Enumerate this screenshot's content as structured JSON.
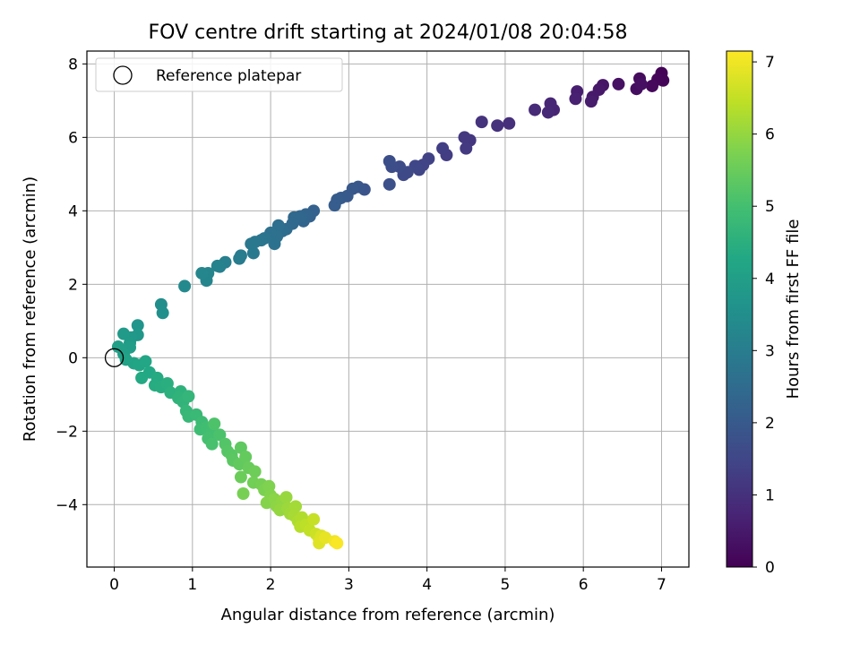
{
  "chart_data": {
    "type": "scatter",
    "title": "FOV centre drift starting at 2024/01/08 20:04:58",
    "xlabel": "Angular distance from reference (arcmin)",
    "ylabel": "Rotation from reference (arcmin)",
    "xlim": [
      -0.35,
      7.35
    ],
    "ylim": [
      -5.7,
      8.35
    ],
    "x_ticks": [
      0,
      1,
      2,
      3,
      4,
      5,
      6,
      7
    ],
    "y_ticks": [
      -4,
      -2,
      0,
      2,
      4,
      6,
      8
    ],
    "grid": true,
    "legend": {
      "placement": "top-left",
      "entries": [
        "Reference platepar"
      ]
    },
    "reference_point": {
      "name": "Reference platepar",
      "x": 0,
      "y": 0
    },
    "colorbar": {
      "label": "Hours from first FF file",
      "min": 0,
      "max": 7.15,
      "ticks": [
        0,
        1,
        2,
        3,
        4,
        5,
        6,
        7
      ],
      "colormap": "viridis"
    },
    "colormap_stops": [
      "#440154",
      "#482475",
      "#414487",
      "#355f8d",
      "#2a788e",
      "#21918c",
      "#22a884",
      "#44bf70",
      "#7ad151",
      "#bddf26",
      "#fde725"
    ],
    "points": [
      {
        "x": 7.0,
        "y": 7.75,
        "h": 0.05
      },
      {
        "x": 7.02,
        "y": 7.55,
        "h": 0.08
      },
      {
        "x": 6.95,
        "y": 7.58,
        "h": 0.1
      },
      {
        "x": 6.88,
        "y": 7.4,
        "h": 0.15
      },
      {
        "x": 6.72,
        "y": 7.6,
        "h": 0.2
      },
      {
        "x": 6.68,
        "y": 7.32,
        "h": 0.25
      },
      {
        "x": 6.74,
        "y": 7.45,
        "h": 0.28
      },
      {
        "x": 6.45,
        "y": 7.45,
        "h": 0.33
      },
      {
        "x": 6.25,
        "y": 7.42,
        "h": 0.4
      },
      {
        "x": 6.2,
        "y": 7.3,
        "h": 0.45
      },
      {
        "x": 6.12,
        "y": 7.1,
        "h": 0.5
      },
      {
        "x": 6.1,
        "y": 6.98,
        "h": 0.55
      },
      {
        "x": 5.92,
        "y": 7.25,
        "h": 0.6
      },
      {
        "x": 5.9,
        "y": 7.05,
        "h": 0.65
      },
      {
        "x": 5.62,
        "y": 6.75,
        "h": 0.72
      },
      {
        "x": 5.58,
        "y": 6.92,
        "h": 0.76
      },
      {
        "x": 5.55,
        "y": 6.68,
        "h": 0.8
      },
      {
        "x": 5.38,
        "y": 6.75,
        "h": 0.85
      },
      {
        "x": 5.05,
        "y": 6.38,
        "h": 0.95
      },
      {
        "x": 4.9,
        "y": 6.32,
        "h": 1.0
      },
      {
        "x": 4.7,
        "y": 6.42,
        "h": 1.05
      },
      {
        "x": 4.55,
        "y": 5.92,
        "h": 1.12
      },
      {
        "x": 4.48,
        "y": 6.0,
        "h": 1.16
      },
      {
        "x": 4.5,
        "y": 5.7,
        "h": 1.2
      },
      {
        "x": 4.25,
        "y": 5.52,
        "h": 1.27
      },
      {
        "x": 4.2,
        "y": 5.7,
        "h": 1.3
      },
      {
        "x": 4.02,
        "y": 5.42,
        "h": 1.38
      },
      {
        "x": 3.95,
        "y": 5.25,
        "h": 1.42
      },
      {
        "x": 3.9,
        "y": 5.12,
        "h": 1.46
      },
      {
        "x": 3.85,
        "y": 5.22,
        "h": 1.5
      },
      {
        "x": 3.75,
        "y": 5.05,
        "h": 1.55
      },
      {
        "x": 3.7,
        "y": 4.98,
        "h": 1.58
      },
      {
        "x": 3.65,
        "y": 5.2,
        "h": 1.62
      },
      {
        "x": 3.55,
        "y": 5.2,
        "h": 1.66
      },
      {
        "x": 3.52,
        "y": 5.35,
        "h": 1.7
      },
      {
        "x": 3.52,
        "y": 4.72,
        "h": 1.74
      },
      {
        "x": 3.2,
        "y": 4.58,
        "h": 1.85
      },
      {
        "x": 3.12,
        "y": 4.65,
        "h": 1.9
      },
      {
        "x": 3.05,
        "y": 4.6,
        "h": 1.94
      },
      {
        "x": 2.98,
        "y": 4.4,
        "h": 1.98
      },
      {
        "x": 2.9,
        "y": 4.35,
        "h": 2.02
      },
      {
        "x": 2.85,
        "y": 4.3,
        "h": 2.06
      },
      {
        "x": 2.82,
        "y": 4.15,
        "h": 2.1
      },
      {
        "x": 2.55,
        "y": 4.0,
        "h": 2.2
      },
      {
        "x": 2.5,
        "y": 3.85,
        "h": 2.24
      },
      {
        "x": 2.45,
        "y": 3.9,
        "h": 2.28
      },
      {
        "x": 2.42,
        "y": 3.72,
        "h": 2.32
      },
      {
        "x": 2.38,
        "y": 3.85,
        "h": 2.36
      },
      {
        "x": 2.3,
        "y": 3.82,
        "h": 2.4
      },
      {
        "x": 2.28,
        "y": 3.65,
        "h": 2.44
      },
      {
        "x": 2.2,
        "y": 3.5,
        "h": 2.5
      },
      {
        "x": 2.15,
        "y": 3.45,
        "h": 2.54
      },
      {
        "x": 2.1,
        "y": 3.6,
        "h": 2.58
      },
      {
        "x": 2.08,
        "y": 3.3,
        "h": 2.62
      },
      {
        "x": 2.0,
        "y": 3.4,
        "h": 2.66
      },
      {
        "x": 2.05,
        "y": 3.1,
        "h": 2.7
      },
      {
        "x": 1.92,
        "y": 3.25,
        "h": 2.74
      },
      {
        "x": 1.88,
        "y": 3.2,
        "h": 2.78
      },
      {
        "x": 1.8,
        "y": 3.15,
        "h": 2.82
      },
      {
        "x": 1.75,
        "y": 3.1,
        "h": 2.86
      },
      {
        "x": 1.78,
        "y": 2.85,
        "h": 2.9
      },
      {
        "x": 1.62,
        "y": 2.78,
        "h": 2.95
      },
      {
        "x": 1.6,
        "y": 2.7,
        "h": 2.98
      },
      {
        "x": 1.42,
        "y": 2.6,
        "h": 3.05
      },
      {
        "x": 1.35,
        "y": 2.48,
        "h": 3.1
      },
      {
        "x": 1.32,
        "y": 2.5,
        "h": 3.14
      },
      {
        "x": 1.2,
        "y": 2.3,
        "h": 3.2
      },
      {
        "x": 1.18,
        "y": 2.1,
        "h": 3.24
      },
      {
        "x": 1.12,
        "y": 2.3,
        "h": 3.28
      },
      {
        "x": 0.9,
        "y": 1.95,
        "h": 3.36
      },
      {
        "x": 0.6,
        "y": 1.45,
        "h": 3.5
      },
      {
        "x": 0.62,
        "y": 1.22,
        "h": 3.55
      },
      {
        "x": 0.3,
        "y": 0.88,
        "h": 3.7
      },
      {
        "x": 0.3,
        "y": 0.62,
        "h": 3.75
      },
      {
        "x": 0.22,
        "y": 0.55,
        "h": 3.8
      },
      {
        "x": 0.12,
        "y": 0.65,
        "h": 3.85
      },
      {
        "x": 0.2,
        "y": 0.4,
        "h": 3.9
      },
      {
        "x": 0.2,
        "y": 0.28,
        "h": 3.95
      },
      {
        "x": 0.05,
        "y": 0.3,
        "h": 4.0
      },
      {
        "x": 0.12,
        "y": 0.1,
        "h": 4.05
      },
      {
        "x": 0.15,
        "y": -0.05,
        "h": 4.1
      },
      {
        "x": 0.25,
        "y": -0.15,
        "h": 4.15
      },
      {
        "x": 0.32,
        "y": -0.2,
        "h": 4.2
      },
      {
        "x": 0.4,
        "y": -0.1,
        "h": 4.24
      },
      {
        "x": 0.45,
        "y": -0.4,
        "h": 4.28
      },
      {
        "x": 0.35,
        "y": -0.55,
        "h": 4.32
      },
      {
        "x": 0.55,
        "y": -0.55,
        "h": 4.36
      },
      {
        "x": 0.52,
        "y": -0.75,
        "h": 4.4
      },
      {
        "x": 0.6,
        "y": -0.8,
        "h": 4.44
      },
      {
        "x": 0.68,
        "y": -0.7,
        "h": 4.48
      },
      {
        "x": 0.72,
        "y": -0.95,
        "h": 4.52
      },
      {
        "x": 0.85,
        "y": -0.92,
        "h": 4.56
      },
      {
        "x": 0.82,
        "y": -1.1,
        "h": 4.6
      },
      {
        "x": 0.88,
        "y": -1.2,
        "h": 4.64
      },
      {
        "x": 0.95,
        "y": -1.05,
        "h": 4.68
      },
      {
        "x": 0.92,
        "y": -1.45,
        "h": 4.72
      },
      {
        "x": 0.95,
        "y": -1.6,
        "h": 4.76
      },
      {
        "x": 1.05,
        "y": -1.55,
        "h": 4.8
      },
      {
        "x": 1.12,
        "y": -1.75,
        "h": 4.86
      },
      {
        "x": 1.1,
        "y": -1.95,
        "h": 4.9
      },
      {
        "x": 1.18,
        "y": -1.9,
        "h": 4.94
      },
      {
        "x": 1.25,
        "y": -2.05,
        "h": 4.98
      },
      {
        "x": 1.2,
        "y": -2.2,
        "h": 5.02
      },
      {
        "x": 1.25,
        "y": -2.35,
        "h": 5.06
      },
      {
        "x": 1.35,
        "y": -2.1,
        "h": 5.1
      },
      {
        "x": 1.28,
        "y": -1.8,
        "h": 5.14
      },
      {
        "x": 1.42,
        "y": -2.35,
        "h": 5.2
      },
      {
        "x": 1.45,
        "y": -2.55,
        "h": 5.24
      },
      {
        "x": 1.5,
        "y": -2.65,
        "h": 5.28
      },
      {
        "x": 1.52,
        "y": -2.8,
        "h": 5.32
      },
      {
        "x": 1.62,
        "y": -2.45,
        "h": 5.36
      },
      {
        "x": 1.6,
        "y": -2.9,
        "h": 5.4
      },
      {
        "x": 1.68,
        "y": -2.7,
        "h": 5.44
      },
      {
        "x": 1.72,
        "y": -3.0,
        "h": 5.48
      },
      {
        "x": 1.62,
        "y": -3.25,
        "h": 5.52
      },
      {
        "x": 1.8,
        "y": -3.1,
        "h": 5.56
      },
      {
        "x": 1.78,
        "y": -3.4,
        "h": 5.6
      },
      {
        "x": 1.88,
        "y": -3.45,
        "h": 5.64
      },
      {
        "x": 1.65,
        "y": -3.7,
        "h": 5.68
      },
      {
        "x": 1.92,
        "y": -3.6,
        "h": 5.72
      },
      {
        "x": 1.98,
        "y": -3.5,
        "h": 5.76
      },
      {
        "x": 2.0,
        "y": -3.75,
        "h": 5.8
      },
      {
        "x": 1.95,
        "y": -3.95,
        "h": 5.84
      },
      {
        "x": 2.05,
        "y": -3.85,
        "h": 5.88
      },
      {
        "x": 2.08,
        "y": -4.05,
        "h": 5.92
      },
      {
        "x": 2.15,
        "y": -3.9,
        "h": 5.96
      },
      {
        "x": 2.12,
        "y": -4.15,
        "h": 6.0
      },
      {
        "x": 2.2,
        "y": -3.8,
        "h": 6.04
      },
      {
        "x": 2.22,
        "y": -4.1,
        "h": 6.08
      },
      {
        "x": 2.25,
        "y": -4.25,
        "h": 6.12
      },
      {
        "x": 2.32,
        "y": -4.05,
        "h": 6.16
      },
      {
        "x": 2.3,
        "y": -4.3,
        "h": 6.2
      },
      {
        "x": 2.35,
        "y": -4.45,
        "h": 6.26
      },
      {
        "x": 2.4,
        "y": -4.35,
        "h": 6.3
      },
      {
        "x": 2.38,
        "y": -4.6,
        "h": 6.36
      },
      {
        "x": 2.45,
        "y": -4.55,
        "h": 6.42
      },
      {
        "x": 2.5,
        "y": -4.7,
        "h": 6.48
      },
      {
        "x": 2.55,
        "y": -4.4,
        "h": 6.54
      },
      {
        "x": 2.58,
        "y": -4.8,
        "h": 6.6
      },
      {
        "x": 2.62,
        "y": -4.95,
        "h": 6.7
      },
      {
        "x": 2.65,
        "y": -4.85,
        "h": 6.76
      },
      {
        "x": 2.62,
        "y": -5.05,
        "h": 6.82
      },
      {
        "x": 2.7,
        "y": -4.9,
        "h": 6.9
      },
      {
        "x": 2.82,
        "y": -5.0,
        "h": 7.0
      },
      {
        "x": 2.85,
        "y": -5.05,
        "h": 7.1
      }
    ]
  }
}
